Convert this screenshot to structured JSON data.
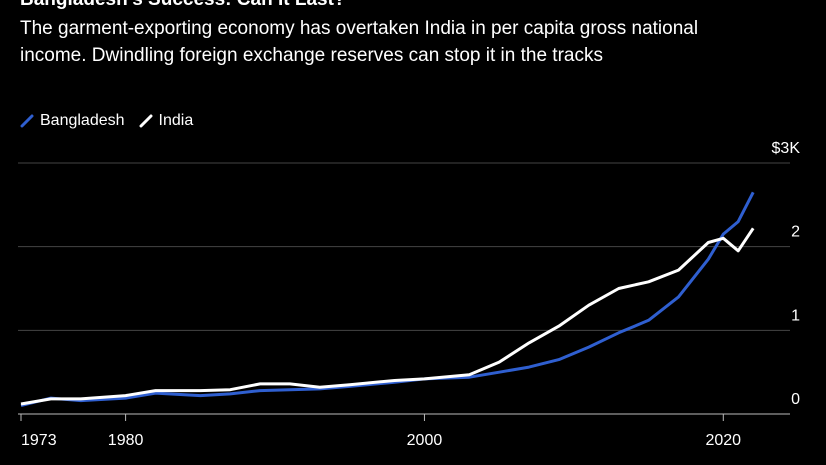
{
  "chart_data": {
    "type": "line",
    "title": "Bangladesh's Success: Can It Last?",
    "subtitle": "The garment-exporting economy has overtaken India in per capita gross national income. Dwindling foreign exchange reserves can stop it in the tracks",
    "x": [
      1973,
      1975,
      1977,
      1980,
      1982,
      1985,
      1987,
      1989,
      1991,
      1993,
      1995,
      1998,
      2000,
      2003,
      2005,
      2007,
      2009,
      2011,
      2013,
      2015,
      2017,
      2019,
      2020,
      2021,
      2022
    ],
    "series": [
      {
        "name": "Bangladesh",
        "color": "#2f5fd0",
        "values": [
          0.1,
          0.19,
          0.16,
          0.19,
          0.25,
          0.22,
          0.24,
          0.28,
          0.29,
          0.3,
          0.33,
          0.38,
          0.42,
          0.44,
          0.5,
          0.56,
          0.65,
          0.8,
          0.97,
          1.12,
          1.4,
          1.85,
          2.15,
          2.3,
          2.65
        ]
      },
      {
        "name": "India",
        "color": "#ffffff",
        "values": [
          0.12,
          0.18,
          0.18,
          0.22,
          0.28,
          0.28,
          0.29,
          0.36,
          0.36,
          0.32,
          0.35,
          0.4,
          0.42,
          0.47,
          0.62,
          0.85,
          1.05,
          1.3,
          1.5,
          1.58,
          1.72,
          2.05,
          2.1,
          1.95,
          2.22
        ]
      }
    ],
    "xlim": [
      1973,
      2025
    ],
    "xticks": [
      1973,
      1980,
      2000,
      2020
    ],
    "ylim": [
      0,
      3
    ],
    "yticks": [
      0,
      1,
      2,
      {
        "value": 3,
        "label": "$3K"
      }
    ],
    "grid": true,
    "legend": "top-left"
  }
}
